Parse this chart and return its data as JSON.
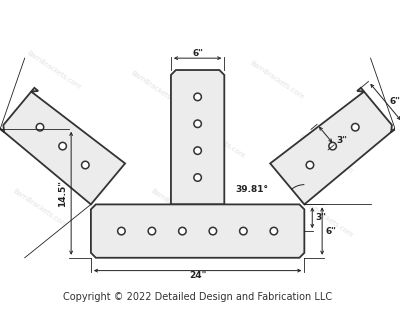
{
  "background_color": "#ffffff",
  "line_color": "#333333",
  "dim_color": "#222222",
  "copyright_text": "Copyright © 2022 Detailed Design and Fabrication LLC",
  "copyright_fontsize": 7.0,
  "dims": {
    "center_width": "6\"",
    "arm_width_6": "6\"",
    "arm_inner_3": "3\"",
    "bar_height_6": "6\"",
    "bar_width_24": "24\"",
    "left_total": "14.5\"",
    "angle": "39.81°",
    "bar_offset_3": "3\""
  },
  "figsize": [
    4.0,
    3.09
  ],
  "dpi": 100
}
